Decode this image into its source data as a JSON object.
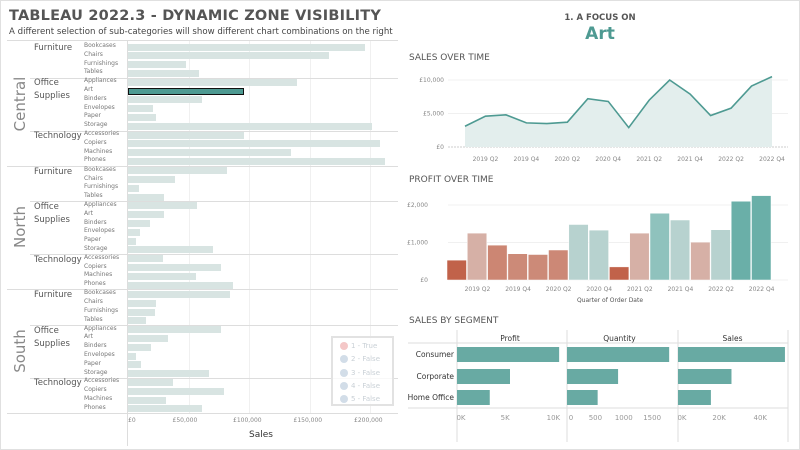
{
  "header": {
    "title": "TABLEAU 2022.3 - DYNAMIC ZONE VISIBILITY",
    "subtitle": "A different selection of sub-categories will show different chart combinations on the right"
  },
  "focus": {
    "label": "1. A FOCUS ON",
    "value": "Art"
  },
  "colors": {
    "accent": "#4e9a92",
    "bar_default": "#d8e4e2",
    "profit_low": "#c1624a",
    "profit_high": "#6aafa8"
  },
  "chart_data": [
    {
      "type": "bar",
      "name": "sales_by_region_subcategory",
      "orientation": "horizontal",
      "xlabel": "Sales",
      "xlim": [
        0,
        215000
      ],
      "x_ticks": [
        "£0",
        "£50,000",
        "£100,000",
        "£150,000",
        "£200,000"
      ],
      "selected": {
        "region": "Central",
        "sub_category": "Art"
      },
      "regions": [
        {
          "name": "Central",
          "categories": [
            {
              "name": "Furniture",
              "items": [
                {
                  "sub": "Bookcases",
                  "value": 196000
                },
                {
                  "sub": "Chairs",
                  "value": 166000
                },
                {
                  "sub": "Furnishings",
                  "value": 48000
                },
                {
                  "sub": "Tables",
                  "value": 59000
                }
              ]
            },
            {
              "name": "Office Supplies",
              "items": [
                {
                  "sub": "Appliances",
                  "value": 140000
                },
                {
                  "sub": "Art",
                  "value": 96000
                },
                {
                  "sub": "Binders",
                  "value": 61000
                },
                {
                  "sub": "Envelopes",
                  "value": 21000
                },
                {
                  "sub": "Paper",
                  "value": 23000
                },
                {
                  "sub": "Storage",
                  "value": 202000
                }
              ]
            },
            {
              "name": "Technology",
              "items": [
                {
                  "sub": "Accessories",
                  "value": 96000
                },
                {
                  "sub": "Copiers",
                  "value": 208000
                },
                {
                  "sub": "Machines",
                  "value": 135000
                },
                {
                  "sub": "Phones",
                  "value": 212000
                }
              ]
            }
          ]
        },
        {
          "name": "North",
          "categories": [
            {
              "name": "Furniture",
              "items": [
                {
                  "sub": "Bookcases",
                  "value": 82000
                },
                {
                  "sub": "Chairs",
                  "value": 39000
                },
                {
                  "sub": "Furnishings",
                  "value": 9000
                },
                {
                  "sub": "Tables",
                  "value": 30000
                }
              ]
            },
            {
              "name": "Office Supplies",
              "items": [
                {
                  "sub": "Appliances",
                  "value": 57000
                },
                {
                  "sub": "Art",
                  "value": 30000
                },
                {
                  "sub": "Binders",
                  "value": 18000
                },
                {
                  "sub": "Envelopes",
                  "value": 10000
                },
                {
                  "sub": "Paper",
                  "value": 7000
                },
                {
                  "sub": "Storage",
                  "value": 70000
                }
              ]
            },
            {
              "name": "Technology",
              "items": [
                {
                  "sub": "Accessories",
                  "value": 29000
                },
                {
                  "sub": "Copiers",
                  "value": 77000
                },
                {
                  "sub": "Machines",
                  "value": 56000
                },
                {
                  "sub": "Phones",
                  "value": 87000
                }
              ]
            }
          ]
        },
        {
          "name": "South",
          "categories": [
            {
              "name": "Furniture",
              "items": [
                {
                  "sub": "Bookcases",
                  "value": 84000
                },
                {
                  "sub": "Chairs",
                  "value": 23000
                },
                {
                  "sub": "Furnishings",
                  "value": 22000
                },
                {
                  "sub": "Tables",
                  "value": 15000
                }
              ]
            },
            {
              "name": "Office Supplies",
              "items": [
                {
                  "sub": "Appliances",
                  "value": 77000
                },
                {
                  "sub": "Art",
                  "value": 33000
                },
                {
                  "sub": "Binders",
                  "value": 19000
                },
                {
                  "sub": "Envelopes",
                  "value": 7000
                },
                {
                  "sub": "Paper",
                  "value": 11000
                },
                {
                  "sub": "Storage",
                  "value": 67000
                }
              ]
            },
            {
              "name": "Technology",
              "items": [
                {
                  "sub": "Accessories",
                  "value": 37000
                },
                {
                  "sub": "Copiers",
                  "value": 79000
                },
                {
                  "sub": "Machines",
                  "value": 31000
                },
                {
                  "sub": "Phones",
                  "value": 61000
                }
              ]
            }
          ]
        }
      ],
      "legend": {
        "placement": "bottom-right",
        "items": [
          {
            "label": "1 - True",
            "color": "#f4c7c7"
          },
          {
            "label": "2 - False",
            "color": "#d2dde8"
          },
          {
            "label": "3 - False",
            "color": "#d2dde8"
          },
          {
            "label": "4 - False",
            "color": "#d2dde8"
          },
          {
            "label": "5 - False",
            "color": "#d2dde8"
          }
        ]
      }
    },
    {
      "type": "area",
      "name": "sales_over_time",
      "title": "SALES OVER TIME",
      "x": [
        "2019 Q1",
        "2019 Q2",
        "2019 Q3",
        "2019 Q4",
        "2020 Q1",
        "2020 Q2",
        "2020 Q3",
        "2020 Q4",
        "2021 Q1",
        "2021 Q2",
        "2021 Q3",
        "2021 Q4",
        "2022 Q1",
        "2022 Q2",
        "2022 Q3",
        "2022 Q4"
      ],
      "values": [
        3100,
        4600,
        4800,
        3600,
        3500,
        3700,
        7200,
        6800,
        2900,
        7000,
        10000,
        7900,
        4700,
        5800,
        9100,
        10500
      ],
      "x_ticks": [
        "2019 Q2",
        "2019 Q4",
        "2020 Q2",
        "2020 Q4",
        "2021 Q2",
        "2021 Q4",
        "2022 Q2",
        "2022 Q4"
      ],
      "y_ticks": [
        "£0",
        "£5,000",
        "£10,000"
      ],
      "ylim": [
        0,
        11000
      ]
    },
    {
      "type": "bar",
      "name": "profit_over_time",
      "title": "PROFIT OVER TIME",
      "xlabel": "Quarter of Order Date",
      "x": [
        "2019 Q1",
        "2019 Q2",
        "2019 Q3",
        "2019 Q4",
        "2020 Q1",
        "2020 Q2",
        "2020 Q3",
        "2020 Q4",
        "2021 Q1",
        "2021 Q2",
        "2021 Q3",
        "2021 Q4",
        "2022 Q1",
        "2022 Q2",
        "2022 Q3",
        "2022 Q4"
      ],
      "values": [
        530,
        1250,
        930,
        700,
        680,
        800,
        1480,
        1330,
        350,
        1250,
        1780,
        1600,
        1010,
        1340,
        2100,
        2250
      ],
      "x_ticks": [
        "2019 Q2",
        "2019 Q4",
        "2020 Q2",
        "2020 Q4",
        "2021 Q2",
        "2021 Q4",
        "2022 Q2",
        "2022 Q4"
      ],
      "y_ticks": [
        "£0",
        "£1,000",
        "£2,000"
      ],
      "ylim": [
        0,
        2300
      ]
    },
    {
      "type": "bar",
      "name": "sales_by_segment",
      "title": "SALES BY SEGMENT",
      "orientation": "horizontal",
      "categories": [
        "Consumer",
        "Corporate",
        "Home Office"
      ],
      "series": [
        {
          "name": "Profit",
          "values": [
            10600,
            5500,
            3400
          ],
          "xlim": [
            0,
            11000
          ],
          "ticks": [
            "0K",
            "5K",
            "10K"
          ]
        },
        {
          "name": "Quantity",
          "values": [
            1800,
            900,
            540
          ],
          "xlim": [
            0,
            1850
          ],
          "ticks": [
            "0",
            "500",
            "1000",
            "1500"
          ]
        },
        {
          "name": "Sales",
          "values": [
            52000,
            26000,
            16000
          ],
          "xlim": [
            0,
            53000
          ],
          "ticks": [
            "0K",
            "20K",
            "40K"
          ]
        }
      ]
    }
  ]
}
